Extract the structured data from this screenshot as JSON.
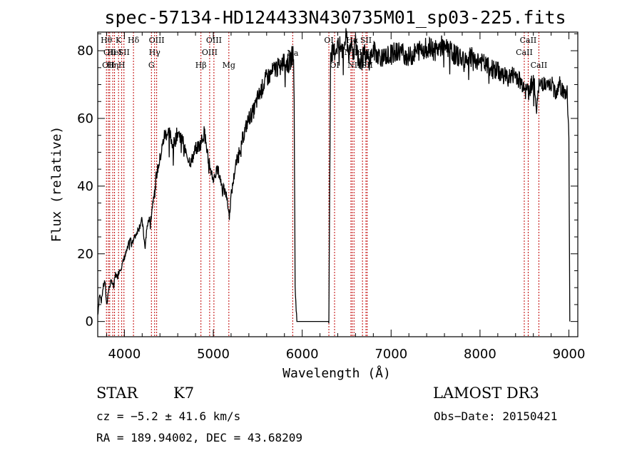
{
  "chart_data": {
    "type": "line",
    "title": "spec-57134-HD124433N430735M01_sp03-225.fits",
    "xlabel": "Wavelength (Å)",
    "ylabel": "Flux (relative)",
    "xlim": [
      3700,
      9100
    ],
    "ylim": [
      -4.5,
      85.5
    ],
    "xticks": [
      4000,
      5000,
      6000,
      7000,
      8000,
      9000
    ],
    "yticks": [
      0,
      20,
      40,
      60,
      80
    ],
    "series": [
      {
        "name": "flux",
        "x": [
          3700,
          3720,
          3740,
          3760,
          3780,
          3800,
          3820,
          3840,
          3860,
          3880,
          3900,
          3920,
          3940,
          3960,
          3980,
          4000,
          4030,
          4060,
          4100,
          4150,
          4200,
          4230,
          4260,
          4300,
          4350,
          4400,
          4450,
          4500,
          4550,
          4600,
          4650,
          4700,
          4750,
          4800,
          4850,
          4900,
          4950,
          5000,
          5050,
          5100,
          5150,
          5180,
          5200,
          5250,
          5300,
          5350,
          5400,
          5450,
          5500,
          5550,
          5600,
          5650,
          5700,
          5750,
          5800,
          5850,
          5880,
          5900,
          5910,
          5920,
          5940,
          6000,
          6100,
          6200,
          6280,
          6300,
          6320,
          6350,
          6400,
          6450,
          6500,
          6530,
          6560,
          6580,
          6600,
          6650,
          6700,
          6750,
          6800,
          6900,
          7000,
          7100,
          7200,
          7300,
          7400,
          7500,
          7600,
          7700,
          7800,
          7900,
          8000,
          8100,
          8200,
          8300,
          8400,
          8480,
          8520,
          8540,
          8560,
          8600,
          8640,
          8660,
          8680,
          8700,
          8750,
          8800,
          8850,
          8900,
          8950,
          8980,
          9000,
          9010
        ],
        "y": [
          2,
          8,
          6,
          10,
          12,
          5,
          9,
          11,
          12,
          10,
          14,
          13,
          15,
          16,
          17,
          19,
          21,
          24,
          24,
          27,
          30,
          22,
          29,
          31,
          42,
          48,
          55,
          56,
          52,
          56,
          54,
          49,
          47,
          51,
          52,
          56,
          47,
          42,
          45,
          40,
          37,
          31,
          37,
          46,
          51,
          56,
          60,
          62,
          66,
          69,
          72,
          73,
          75,
          75,
          77,
          76,
          78,
          80,
          65,
          10,
          0,
          0,
          0,
          0,
          0,
          0,
          80,
          79,
          82,
          80,
          84,
          78,
          83,
          80,
          82,
          76,
          79,
          77,
          80,
          78,
          79,
          80,
          78,
          80,
          81,
          80,
          82,
          79,
          78,
          78,
          77,
          75,
          74,
          72,
          73,
          70,
          71,
          67,
          69,
          72,
          63,
          69,
          70,
          71,
          69,
          70,
          68,
          70,
          67,
          68,
          55,
          0
        ]
      }
    ],
    "lines": [
      {
        "wl": 3798,
        "label": "Hθ",
        "row": 1
      },
      {
        "wl": 3835,
        "label": "OII",
        "row": 2
      },
      {
        "wl": 3820,
        "label": "OII",
        "row": 3
      },
      {
        "wl": 3889,
        "label": "HeI",
        "row": 2
      },
      {
        "wl": 3869,
        "label": "Hη",
        "row": 3
      },
      {
        "wl": 3934,
        "label": "K",
        "row": 1
      },
      {
        "wl": 3970,
        "label": "H",
        "row": 3
      },
      {
        "wl": 3995,
        "label": "SII",
        "row": 2
      },
      {
        "wl": 4102,
        "label": "Hδ",
        "row": 1
      },
      {
        "wl": 4340,
        "label": "Hγ",
        "row": 2
      },
      {
        "wl": 4363,
        "label": "OIII",
        "row": 1
      },
      {
        "wl": 4304,
        "label": "G",
        "row": 3
      },
      {
        "wl": 4861,
        "label": "Hβ",
        "row": 3
      },
      {
        "wl": 4959,
        "label": "OIII",
        "row": 2
      },
      {
        "wl": 5007,
        "label": "OIII",
        "row": 1
      },
      {
        "wl": 5175,
        "label": "Mg",
        "row": 3
      },
      {
        "wl": 5893,
        "label": "Na",
        "row": 4
      },
      {
        "wl": 6300,
        "label": "OI",
        "row": 1
      },
      {
        "wl": 6364,
        "label": "OI",
        "row": 3
      },
      {
        "wl": 6548,
        "label": "NII",
        "row": 2
      },
      {
        "wl": 6563,
        "label": "Hα",
        "row": 1
      },
      {
        "wl": 6583,
        "label": "NII",
        "row": 3
      },
      {
        "wl": 6678,
        "label": "HeI",
        "row": 2
      },
      {
        "wl": 6717,
        "label": "SII",
        "row": 1
      },
      {
        "wl": 6731,
        "label": "SII",
        "row": 3
      },
      {
        "wl": 8498,
        "label": "CaII",
        "row": 2
      },
      {
        "wl": 8542,
        "label": "CaII",
        "row": 1
      },
      {
        "wl": 8662,
        "label": "CaII",
        "row": 3
      }
    ],
    "colors": {
      "spectrum": "#000000",
      "lines": "#c00000"
    }
  },
  "footer": {
    "object_class": "STAR",
    "subclass": "K7",
    "survey": "LAMOST DR3",
    "cz": "cz = −5.2 ± 41.6 km/s",
    "obs_date": "Obs−Date: 20150421",
    "coords": "RA = 189.94002, DEC =  43.68209"
  }
}
